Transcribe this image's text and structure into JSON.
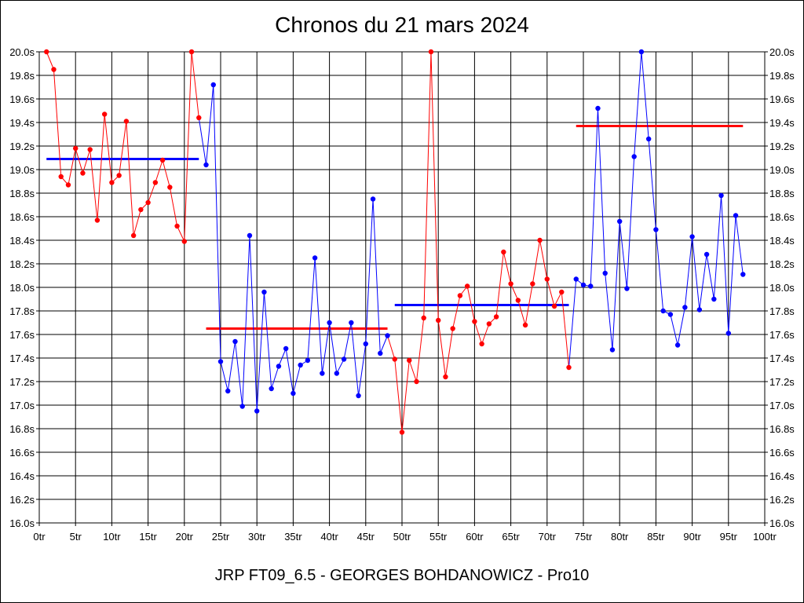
{
  "chart_data": {
    "type": "line",
    "title": "Chronos du 21 mars 2024",
    "subtitle": "JRP FT09_6.5 - GEORGES BOHDANOWICZ - Pro10",
    "xlabel": "",
    "ylabel": "",
    "xlim": [
      0,
      100
    ],
    "ylim": [
      16.0,
      20.0
    ],
    "grid": true,
    "x_ticks": [
      "0tr",
      "5tr",
      "10tr",
      "15tr",
      "20tr",
      "25tr",
      "30tr",
      "35tr",
      "40tr",
      "45tr",
      "50tr",
      "55tr",
      "60tr",
      "65tr",
      "70tr",
      "75tr",
      "80tr",
      "85tr",
      "90tr",
      "95tr",
      "100tr"
    ],
    "y_ticks": [
      "16.0s",
      "16.2s",
      "16.4s",
      "16.6s",
      "16.8s",
      "17.0s",
      "17.2s",
      "17.4s",
      "17.6s",
      "17.8s",
      "18.0s",
      "18.2s",
      "18.4s",
      "18.6s",
      "18.8s",
      "19.0s",
      "19.2s",
      "19.4s",
      "19.6s",
      "19.8s",
      "20.0s"
    ],
    "colors": {
      "red": "#ff0000",
      "blue": "#0000ff"
    },
    "series": [
      {
        "color": "#ff0000",
        "x": [
          1,
          2,
          3,
          4,
          5,
          6,
          7,
          8,
          9,
          10,
          11,
          12,
          13,
          14,
          15,
          16,
          17,
          18,
          19,
          20,
          21,
          22
        ],
        "y": [
          20.0,
          19.85,
          18.94,
          18.87,
          19.18,
          18.97,
          19.17,
          18.57,
          19.47,
          18.89,
          18.95,
          19.41,
          18.44,
          18.66,
          18.72,
          18.89,
          19.08,
          18.85,
          18.52,
          18.39,
          20.0,
          19.44
        ]
      },
      {
        "color": "#0000ff",
        "x": [
          23,
          24,
          25,
          26,
          27,
          28,
          29,
          30,
          31,
          32,
          33,
          34,
          35,
          36,
          37,
          38,
          39,
          40,
          41,
          42,
          43,
          44,
          45,
          46,
          47,
          48
        ],
        "y": [
          19.04,
          19.72,
          17.37,
          17.12,
          17.54,
          16.99,
          18.44,
          16.95,
          17.96,
          17.14,
          17.33,
          17.48,
          17.1,
          17.34,
          17.38,
          18.25,
          17.27,
          17.7,
          17.27,
          17.39,
          17.7,
          17.08,
          17.52,
          18.75,
          17.44,
          17.59
        ]
      },
      {
        "color": "#ff0000",
        "x": [
          49,
          50,
          51,
          52,
          53,
          54,
          55,
          56,
          57,
          58,
          59,
          60,
          61,
          62,
          63,
          64,
          65,
          66,
          67,
          68,
          69,
          70,
          71,
          72,
          73
        ],
        "y": [
          17.39,
          16.77,
          17.38,
          17.2,
          17.74,
          20.0,
          17.72,
          17.24,
          17.65,
          17.93,
          18.01,
          17.71,
          17.52,
          17.69,
          17.75,
          18.3,
          18.03,
          17.89,
          17.68,
          18.03,
          18.4,
          18.07,
          17.84,
          17.96,
          17.32
        ]
      },
      {
        "color": "#0000ff",
        "x": [
          74,
          75,
          76,
          77,
          78,
          79,
          80,
          81,
          82,
          83,
          84,
          85,
          86,
          87,
          88,
          89,
          90,
          91,
          92,
          93,
          94,
          95,
          96,
          97
        ],
        "y": [
          18.07,
          18.02,
          18.01,
          19.52,
          18.12,
          17.47,
          18.56,
          17.99,
          19.11,
          20.0,
          19.26,
          18.49,
          17.8,
          17.77,
          17.51,
          17.83,
          18.43,
          17.81,
          18.28,
          17.9,
          18.78,
          17.61,
          18.61,
          18.11
        ]
      }
    ],
    "averages": [
      {
        "color": "#0000ff",
        "x_start": 1,
        "x_end": 22,
        "y": 19.09
      },
      {
        "color": "#ff0000",
        "x_start": 23,
        "x_end": 48,
        "y": 17.65
      },
      {
        "color": "#0000ff",
        "x_start": 49,
        "x_end": 73,
        "y": 17.85
      },
      {
        "color": "#ff0000",
        "x_start": 74,
        "x_end": 97,
        "y": 19.37
      }
    ]
  }
}
